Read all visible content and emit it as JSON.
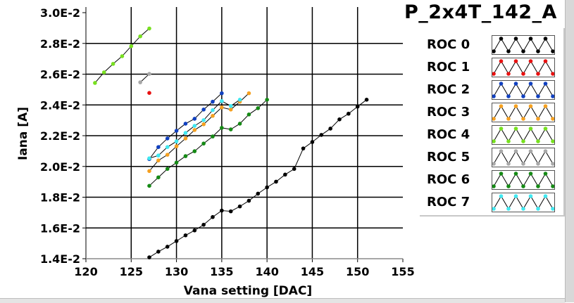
{
  "chart_data": {
    "type": "line",
    "title": "P_2x4T_142_A",
    "xlabel": "Vana setting [DAC]",
    "ylabel": "Iana [A]",
    "xlim": [
      120,
      155
    ],
    "ylim": [
      0.014,
      0.03
    ],
    "xticks": [
      "120",
      "125",
      "130",
      "135",
      "140",
      "145",
      "150",
      "155"
    ],
    "xtick_values": [
      120,
      125,
      130,
      135,
      140,
      145,
      150,
      155
    ],
    "yticks": [
      "1.4E-2",
      "1.6E-2",
      "1.8E-2",
      "2.0E-2",
      "2.2E-2",
      "2.4E-2",
      "2.6E-2",
      "2.8E-2",
      "3.0E-2"
    ],
    "ytick_values": [
      0.014,
      0.016,
      0.018,
      0.02,
      0.022,
      0.024,
      0.026,
      0.028,
      0.03
    ],
    "grid": true,
    "legend_position": "right",
    "series": [
      {
        "name": "ROC 0",
        "color": "#000000",
        "x": [
          127,
          128,
          129,
          130,
          131,
          132,
          133,
          134,
          135,
          136,
          137,
          138,
          139,
          140,
          141,
          142,
          143,
          144,
          145,
          146,
          147,
          148,
          149,
          150,
          151
        ],
        "y": [
          0.01409,
          0.01446,
          0.01478,
          0.01515,
          0.01552,
          0.01584,
          0.01621,
          0.01671,
          0.01713,
          0.01708,
          0.0174,
          0.01777,
          0.01823,
          0.01864,
          0.01901,
          0.01947,
          0.01984,
          0.02117,
          0.02159,
          0.02205,
          0.02246,
          0.02306,
          0.02343,
          0.02389,
          0.02434
        ]
      },
      {
        "name": "ROC 1",
        "color": "#e81010",
        "x": [
          127
        ],
        "y": [
          0.02478
        ]
      },
      {
        "name": "ROC 2",
        "color": "#1040c0",
        "x": [
          127,
          128,
          129,
          130,
          131,
          132,
          133,
          134,
          135
        ],
        "y": [
          0.02048,
          0.02126,
          0.02182,
          0.02232,
          0.02278,
          0.0231,
          0.0237,
          0.02421,
          0.02476
        ]
      },
      {
        "name": "ROC 3",
        "color": "#f5a020",
        "x": [
          127,
          128,
          129,
          130,
          131,
          132,
          133,
          134,
          135,
          136,
          137,
          138
        ],
        "y": [
          0.0197,
          0.02039,
          0.02076,
          0.02131,
          0.02182,
          0.02237,
          0.02274,
          0.02329,
          0.02384,
          0.0237,
          0.02421,
          0.02476
        ]
      },
      {
        "name": "ROC 4",
        "color": "#78e020",
        "x": [
          121,
          122,
          123,
          124,
          125,
          126,
          127
        ],
        "y": [
          0.02543,
          0.02612,
          0.02667,
          0.02717,
          0.02782,
          0.02846,
          0.02897
        ]
      },
      {
        "name": "ROC 5",
        "color": "#a8a8a8",
        "x": [
          126,
          127
        ],
        "y": [
          0.02547,
          0.02602
        ]
      },
      {
        "name": "ROC 6",
        "color": "#158a15",
        "x": [
          127,
          128,
          129,
          130,
          131,
          132,
          133,
          134,
          135,
          136,
          137,
          138,
          139,
          140
        ],
        "y": [
          0.01874,
          0.01929,
          0.01984,
          0.02025,
          0.02067,
          0.02099,
          0.02149,
          0.02195,
          0.02251,
          0.02241,
          0.02278,
          0.02338,
          0.02379,
          0.02434
        ]
      },
      {
        "name": "ROC 7",
        "color": "#40e8f0",
        "x": [
          127,
          128,
          129,
          130,
          131,
          132,
          133,
          134,
          135,
          136,
          137
        ],
        "y": [
          0.02053,
          0.02071,
          0.02126,
          0.02163,
          0.02218,
          0.02264,
          0.02301,
          0.02366,
          0.02425,
          0.02393,
          0.02434
        ]
      }
    ]
  }
}
